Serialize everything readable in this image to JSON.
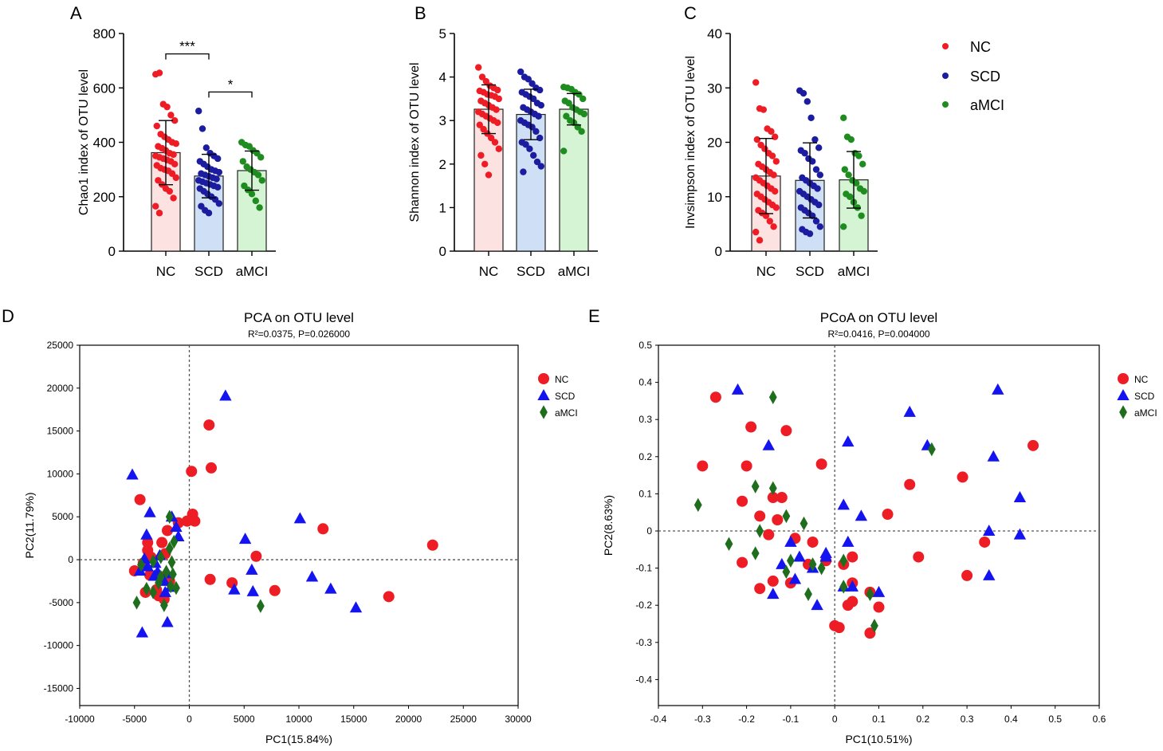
{
  "legend": {
    "top": [
      {
        "label": "NC",
        "color": "#ee1c25"
      },
      {
        "label": "SCD",
        "color": "#1c1ca0"
      },
      {
        "label": "aMCI",
        "color": "#1f8c1f"
      }
    ],
    "bottom": [
      {
        "label": "NC",
        "color": "#ee1c25",
        "shape": "circle"
      },
      {
        "label": "SCD",
        "color": "#1414f0",
        "shape": "triangle"
      },
      {
        "label": "aMCI",
        "color": "#1e6e1e",
        "shape": "diamond"
      }
    ]
  },
  "chart_data": [
    {
      "panel": "A",
      "type": "bar",
      "ylabel": "Chao1 index of OTU level",
      "ylim": [
        0,
        800
      ],
      "yticks": [
        0,
        200,
        400,
        600,
        800
      ],
      "categories": [
        "NC",
        "SCD",
        "aMCI"
      ],
      "values": [
        362,
        276,
        296
      ],
      "sd": [
        118,
        80,
        72
      ],
      "bar_colors": [
        "#fde2e2",
        "#cfe0f6",
        "#d4f4d4"
      ],
      "point_colors": [
        "#ee1c25",
        "#1c1ca0",
        "#1f8c1f"
      ],
      "points": [
        [
          650,
          655,
          540,
          530,
          500,
          480,
          460,
          430,
          420,
          410,
          400,
          395,
          385,
          378,
          370,
          360,
          355,
          350,
          345,
          340,
          335,
          330,
          320,
          315,
          305,
          300,
          295,
          285,
          270,
          260,
          245,
          230,
          220,
          195,
          165,
          140
        ],
        [
          515,
          450,
          380,
          360,
          350,
          340,
          330,
          320,
          310,
          300,
          295,
          290,
          285,
          280,
          275,
          270,
          265,
          260,
          255,
          250,
          245,
          240,
          235,
          230,
          220,
          210,
          200,
          190,
          175,
          165,
          150,
          140
        ],
        [
          400,
          390,
          385,
          370,
          360,
          345,
          330,
          310,
          300,
          290,
          280,
          260,
          240,
          225,
          210,
          185,
          160
        ]
      ],
      "significance": [
        {
          "from": 0,
          "to": 1,
          "label": "***",
          "y": 725
        },
        {
          "from": 1,
          "to": 2,
          "label": "*",
          "y": 585
        }
      ]
    },
    {
      "panel": "B",
      "type": "bar",
      "ylabel": "Shannon index of OTU level",
      "ylim": [
        0,
        5
      ],
      "yticks": [
        0,
        1,
        2,
        3,
        4,
        5
      ],
      "categories": [
        "NC",
        "SCD",
        "aMCI"
      ],
      "values": [
        3.26,
        3.14,
        3.26
      ],
      "sd": [
        0.56,
        0.58,
        0.36
      ],
      "bar_colors": [
        "#fde2e2",
        "#cfe0f6",
        "#d4f4d4"
      ],
      "point_colors": [
        "#ee1c25",
        "#1c1ca0",
        "#1f8c1f"
      ],
      "points": [
        [
          4.22,
          4.0,
          3.9,
          3.8,
          3.75,
          3.7,
          3.68,
          3.65,
          3.6,
          3.58,
          3.55,
          3.5,
          3.45,
          3.4,
          3.35,
          3.3,
          3.25,
          3.2,
          3.15,
          3.1,
          3.05,
          3.0,
          2.95,
          2.9,
          2.8,
          2.7,
          2.6,
          2.5,
          2.35,
          2.2,
          2.0,
          1.75
        ],
        [
          4.12,
          4.0,
          3.95,
          3.85,
          3.75,
          3.7,
          3.65,
          3.6,
          3.55,
          3.5,
          3.4,
          3.35,
          3.3,
          3.25,
          3.2,
          3.15,
          3.1,
          3.0,
          2.95,
          2.9,
          2.85,
          2.75,
          2.6,
          2.5,
          2.45,
          2.35,
          2.2,
          2.05,
          1.95,
          1.82
        ],
        [
          3.77,
          3.75,
          3.72,
          3.65,
          3.6,
          3.5,
          3.45,
          3.4,
          3.3,
          3.25,
          3.2,
          3.15,
          3.1,
          3.0,
          2.95,
          2.85,
          2.75,
          2.3
        ]
      ],
      "significance": []
    },
    {
      "panel": "C",
      "type": "bar",
      "ylabel": "Invsimpson index of OTU level",
      "ylim": [
        0,
        40
      ],
      "yticks": [
        0,
        10,
        20,
        30,
        40
      ],
      "categories": [
        "NC",
        "SCD",
        "aMCI"
      ],
      "values": [
        13.8,
        13.0,
        13.1
      ],
      "sd": [
        6.9,
        6.9,
        5.2
      ],
      "bar_colors": [
        "#fde2e2",
        "#cfe0f6",
        "#d4f4d4"
      ],
      "point_colors": [
        "#ee1c25",
        "#1c1ca0",
        "#1f8c1f"
      ],
      "points": [
        [
          31.0,
          26.2,
          26.0,
          22.5,
          22.0,
          21.0,
          20.5,
          19.5,
          18.8,
          18.0,
          17.5,
          16.5,
          16.0,
          15.5,
          15.0,
          14.5,
          14.0,
          13.5,
          13.0,
          12.5,
          12.0,
          11.5,
          11.0,
          10.5,
          10.0,
          9.5,
          9.0,
          8.5,
          8.0,
          7.5,
          7.0,
          6.5,
          5.5,
          4.5,
          3.5,
          2.0
        ],
        [
          29.5,
          29.0,
          27.5,
          24.5,
          20.5,
          19.0,
          18.5,
          18.0,
          17.0,
          16.5,
          15.0,
          14.0,
          13.5,
          13.0,
          12.5,
          12.0,
          11.5,
          11.0,
          10.5,
          10.0,
          9.5,
          9.0,
          8.5,
          8.0,
          7.5,
          7.0,
          6.5,
          5.5,
          4.5,
          4.0,
          3.5,
          3.2
        ],
        [
          24.5,
          21.0,
          20.5,
          18.0,
          17.5,
          16.0,
          15.0,
          14.0,
          13.0,
          12.5,
          11.5,
          11.0,
          10.5,
          10.0,
          9.0,
          8.0,
          6.5,
          4.5
        ]
      ],
      "significance": []
    },
    {
      "panel": "D",
      "type": "scatter",
      "title": "PCA on OTU level",
      "subtitle": "R²=0.0375, P=0.026000",
      "xlabel": "PC1(15.84%)",
      "ylabel": "PC2(11.79%)",
      "xlim": [
        -10000,
        30000
      ],
      "ylim": [
        -17000,
        25000
      ],
      "xticks": [
        -10000,
        -5000,
        0,
        5000,
        10000,
        15000,
        20000,
        25000,
        30000
      ],
      "yticks": [
        -15000,
        -10000,
        -5000,
        0,
        5000,
        10000,
        15000,
        20000,
        25000
      ],
      "series": [
        {
          "name": "NC",
          "shape": "circle",
          "color": "#ee1c25",
          "points": [
            [
              1800,
              15700
            ],
            [
              2000,
              10700
            ],
            [
              200,
              10300
            ],
            [
              -4500,
              7000
            ],
            [
              12200,
              3600
            ],
            [
              22200,
              1700
            ],
            [
              300,
              5300
            ],
            [
              -200,
              4500
            ],
            [
              500,
              4500
            ],
            [
              -1000,
              4300
            ],
            [
              -2000,
              3400
            ],
            [
              -3800,
              2000
            ],
            [
              -2500,
              2000
            ],
            [
              -3800,
              1100
            ],
            [
              -2200,
              700
            ],
            [
              -3500,
              300
            ],
            [
              -4200,
              -400
            ],
            [
              -5000,
              -1300
            ],
            [
              -3600,
              -1800
            ],
            [
              -2500,
              -2000
            ],
            [
              -2800,
              -4200
            ],
            [
              -4000,
              -3800
            ],
            [
              -1800,
              -2500
            ],
            [
              -3000,
              -3500
            ],
            [
              1900,
              -2300
            ],
            [
              3900,
              -2700
            ],
            [
              7800,
              -3600
            ],
            [
              6100,
              400
            ],
            [
              18200,
              -4300
            ],
            [
              -2300,
              -4600
            ]
          ]
        },
        {
          "name": "SCD",
          "shape": "triangle",
          "color": "#1414f0",
          "points": [
            [
              3300,
              19100
            ],
            [
              -5200,
              9900
            ],
            [
              -3600,
              5500
            ],
            [
              -1600,
              5000
            ],
            [
              -1200,
              3800
            ],
            [
              -3900,
              2900
            ],
            [
              5100,
              2400
            ],
            [
              10100,
              4800
            ],
            [
              -1000,
              2700
            ],
            [
              -2700,
              500
            ],
            [
              -3100,
              -400
            ],
            [
              -3800,
              -800
            ],
            [
              -4100,
              100
            ],
            [
              -2900,
              -1400
            ],
            [
              -4500,
              -1300
            ],
            [
              -2000,
              -1600
            ],
            [
              5700,
              -1200
            ],
            [
              -3200,
              -1900
            ],
            [
              -2300,
              -2500
            ],
            [
              11200,
              -2000
            ],
            [
              4100,
              -3500
            ],
            [
              5800,
              -3700
            ],
            [
              12900,
              -3400
            ],
            [
              -1700,
              -3200
            ],
            [
              -2200,
              -3800
            ],
            [
              15200,
              -5600
            ],
            [
              -2000,
              -7300
            ],
            [
              -4300,
              -8500
            ]
          ]
        },
        {
          "name": "aMCI",
          "shape": "diamond",
          "color": "#1e6e1e",
          "points": [
            [
              -1800,
              5000
            ],
            [
              -1400,
              2100
            ],
            [
              -1800,
              1300
            ],
            [
              -2600,
              300
            ],
            [
              -3300,
              -200
            ],
            [
              -4400,
              -600
            ],
            [
              -1600,
              -300
            ],
            [
              -2100,
              -1400
            ],
            [
              -2600,
              -2000
            ],
            [
              -3900,
              -3400
            ],
            [
              -3300,
              -3800
            ],
            [
              -2800,
              -2700
            ],
            [
              -1700,
              -3100
            ],
            [
              -2300,
              -5300
            ],
            [
              -4800,
              -5000
            ],
            [
              6500,
              -5400
            ],
            [
              -1200,
              -3300
            ],
            [
              -1500,
              -1700
            ]
          ]
        }
      ]
    },
    {
      "panel": "E",
      "type": "scatter",
      "title": "PCoA on OTU level",
      "subtitle": "R²=0.0416, P=0.004000",
      "xlabel": "PC1(10.51%)",
      "ylabel": "PC2(8.63%)",
      "xlim": [
        -0.4,
        0.6
      ],
      "ylim": [
        -0.47,
        0.5
      ],
      "xticks": [
        -0.4,
        -0.3,
        -0.2,
        -0.1,
        0,
        0.1,
        0.2,
        0.3,
        0.4,
        0.5,
        0.6
      ],
      "yticks": [
        -0.4,
        -0.3,
        -0.2,
        -0.1,
        0,
        0.1,
        0.2,
        0.3,
        0.4,
        0.5
      ],
      "series": [
        {
          "name": "NC",
          "shape": "circle",
          "color": "#ee1c25",
          "points": [
            [
              -0.27,
              0.36
            ],
            [
              -0.19,
              0.28
            ],
            [
              -0.3,
              0.175
            ],
            [
              -0.2,
              0.175
            ],
            [
              -0.11,
              0.27
            ],
            [
              -0.03,
              0.18
            ],
            [
              -0.21,
              0.08
            ],
            [
              -0.14,
              0.09
            ],
            [
              -0.12,
              0.09
            ],
            [
              -0.17,
              0.04
            ],
            [
              -0.13,
              0.03
            ],
            [
              -0.15,
              -0.01
            ],
            [
              -0.09,
              -0.02
            ],
            [
              -0.05,
              -0.03
            ],
            [
              -0.02,
              -0.08
            ],
            [
              -0.21,
              -0.085
            ],
            [
              -0.17,
              -0.155
            ],
            [
              -0.14,
              -0.135
            ],
            [
              -0.1,
              -0.14
            ],
            [
              -0.06,
              -0.09
            ],
            [
              0.02,
              -0.09
            ],
            [
              0.04,
              -0.07
            ],
            [
              0.04,
              -0.14
            ],
            [
              0.03,
              -0.2
            ],
            [
              0.04,
              -0.19
            ],
            [
              0.08,
              -0.165
            ],
            [
              0.1,
              -0.205
            ],
            [
              0.0,
              -0.255
            ],
            [
              0.01,
              -0.26
            ],
            [
              0.08,
              -0.275
            ],
            [
              0.12,
              0.045
            ],
            [
              0.17,
              0.125
            ],
            [
              0.29,
              0.145
            ],
            [
              0.45,
              0.23
            ],
            [
              0.19,
              -0.07
            ],
            [
              0.34,
              -0.03
            ],
            [
              0.3,
              -0.12
            ]
          ]
        },
        {
          "name": "SCD",
          "shape": "triangle",
          "color": "#1414f0",
          "points": [
            [
              -0.22,
              0.38
            ],
            [
              -0.15,
              0.23
            ],
            [
              0.03,
              0.24
            ],
            [
              0.17,
              0.32
            ],
            [
              0.37,
              0.38
            ],
            [
              0.21,
              0.23
            ],
            [
              0.36,
              0.2
            ],
            [
              0.02,
              0.07
            ],
            [
              0.06,
              0.04
            ],
            [
              0.42,
              0.09
            ],
            [
              0.35,
              0.0
            ],
            [
              0.42,
              -0.01
            ],
            [
              -0.1,
              -0.03
            ],
            [
              -0.12,
              -0.09
            ],
            [
              -0.08,
              -0.07
            ],
            [
              -0.05,
              -0.1
            ],
            [
              -0.02,
              -0.07
            ],
            [
              0.03,
              -0.03
            ],
            [
              -0.14,
              -0.17
            ],
            [
              -0.09,
              -0.13
            ],
            [
              -0.04,
              -0.2
            ],
            [
              0.02,
              -0.15
            ],
            [
              0.04,
              -0.15
            ],
            [
              0.1,
              -0.165
            ],
            [
              0.35,
              -0.12
            ],
            [
              -0.02,
              -0.06
            ]
          ]
        },
        {
          "name": "aMCI",
          "shape": "diamond",
          "color": "#1e6e1e",
          "points": [
            [
              -0.14,
              0.36
            ],
            [
              0.22,
              0.22
            ],
            [
              -0.18,
              0.12
            ],
            [
              -0.14,
              0.115
            ],
            [
              -0.31,
              0.07
            ],
            [
              -0.17,
              0.0
            ],
            [
              -0.24,
              -0.035
            ],
            [
              -0.07,
              0.02
            ],
            [
              -0.11,
              0.04
            ],
            [
              -0.18,
              -0.06
            ],
            [
              -0.1,
              -0.08
            ],
            [
              -0.11,
              -0.11
            ],
            [
              -0.03,
              -0.1
            ],
            [
              -0.06,
              -0.17
            ],
            [
              0.02,
              -0.08
            ],
            [
              0.02,
              -0.15
            ],
            [
              0.08,
              -0.17
            ],
            [
              0.09,
              -0.255
            ],
            [
              -0.05,
              -0.09
            ]
          ]
        }
      ]
    }
  ]
}
